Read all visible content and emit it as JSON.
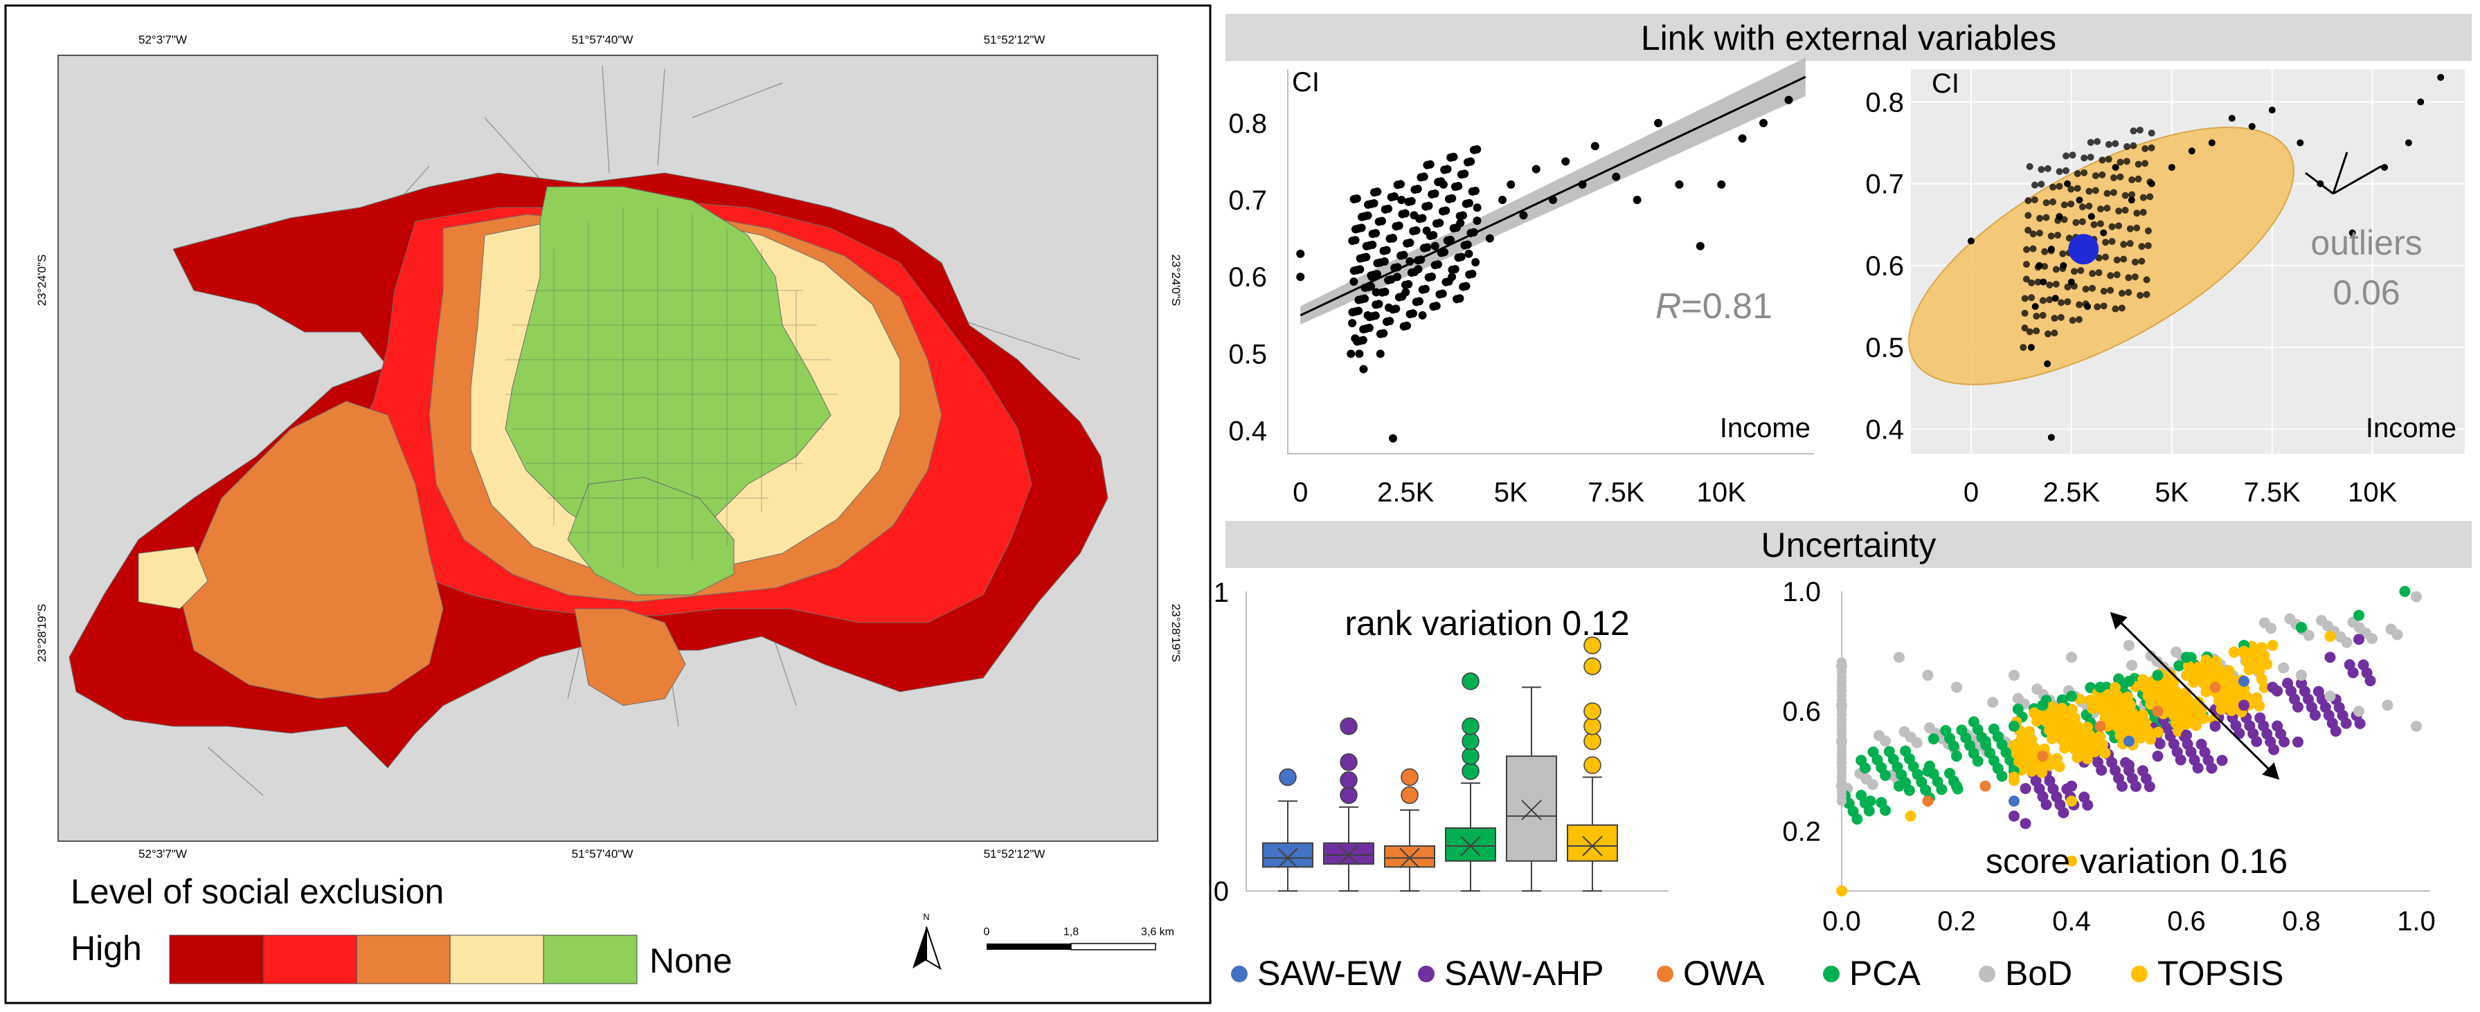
{
  "map": {
    "coords": {
      "top": [
        "52°3'7\"W",
        "51°57'40\"W",
        "51°52'12\"W"
      ],
      "bottom": [
        "52°3'7\"W",
        "51°57'40\"W",
        "51°52'12\"W"
      ],
      "left": [
        "23°24'0\"S",
        "23°28'19\"S"
      ],
      "right": [
        "23°24'0\"S",
        "23°28'19\"S"
      ]
    },
    "legend": {
      "title": "Level of social exclusion",
      "high_label": "High",
      "none_label": "None",
      "colors": [
        "#c00000",
        "#ff1c1c",
        "#e8803a",
        "#fde5a4",
        "#8fcf5a"
      ]
    },
    "north_label": "N",
    "scale": {
      "ticks": [
        "0",
        "1,8",
        "3,6 km"
      ]
    }
  },
  "panels": {
    "external_title": "Link with external variables",
    "uncertainty_title": "Uncertainty"
  },
  "colors": {
    "saw_ew": "#4472c4",
    "saw_ahp": "#7030a0",
    "owa": "#ed7d31",
    "pca": "#00b050",
    "bod": "#bfbfbf",
    "topsis": "#ffc000",
    "ellipse": "#f6c266",
    "centroid": "#1f2bd6",
    "annotation": "#8c8c8c"
  },
  "chart_data": [
    {
      "id": "income-ci-scatter",
      "type": "scatter",
      "ylabel": "CI",
      "xlabel": "Income",
      "xticks": [
        "0",
        "2.5K",
        "5K",
        "7.5K",
        "10K"
      ],
      "yticks": [
        "0.4",
        "0.5",
        "0.6",
        "0.7",
        "0.8"
      ],
      "xlim": [
        -300,
        12200
      ],
      "ylim": [
        0.37,
        0.87
      ],
      "annotation": {
        "prefix": "R",
        "value": "=0.81"
      },
      "trend": {
        "x0": 0,
        "y0": 0.55,
        "x1": 12000,
        "y1": 0.86
      },
      "points": [
        [
          0,
          0.63
        ],
        [
          0,
          0.6
        ],
        [
          1300,
          0.52
        ],
        [
          1400,
          0.5
        ],
        [
          1500,
          0.48
        ],
        [
          1600,
          0.55
        ],
        [
          1700,
          0.6
        ],
        [
          1800,
          0.58
        ],
        [
          1900,
          0.5
        ],
        [
          2000,
          0.62
        ],
        [
          2100,
          0.56
        ],
        [
          2200,
          0.65
        ],
        [
          2300,
          0.6
        ],
        [
          2400,
          0.7
        ],
        [
          2500,
          0.58
        ],
        [
          2600,
          0.62
        ],
        [
          2700,
          0.68
        ],
        [
          2800,
          0.61
        ],
        [
          2900,
          0.55
        ],
        [
          3000,
          0.66
        ],
        [
          3200,
          0.64
        ],
        [
          3400,
          0.72
        ],
        [
          3600,
          0.6
        ],
        [
          3800,
          0.67
        ],
        [
          4000,
          0.63
        ],
        [
          4200,
          0.69
        ],
        [
          4500,
          0.65
        ],
        [
          4800,
          0.7
        ],
        [
          5000,
          0.72
        ],
        [
          5300,
          0.68
        ],
        [
          5600,
          0.74
        ],
        [
          6000,
          0.7
        ],
        [
          6300,
          0.75
        ],
        [
          6700,
          0.72
        ],
        [
          7000,
          0.77
        ],
        [
          7500,
          0.73
        ],
        [
          8000,
          0.7
        ],
        [
          8500,
          0.8
        ],
        [
          9000,
          0.72
        ],
        [
          9500,
          0.64
        ],
        [
          10000,
          0.72
        ],
        [
          10500,
          0.78
        ],
        [
          11000,
          0.8
        ],
        [
          11600,
          0.83
        ],
        [
          2200,
          0.39
        ]
      ]
    },
    {
      "id": "income-ci-outliers",
      "type": "scatter",
      "ylabel": "CI",
      "xlabel": "Income",
      "xticks": [
        "0",
        "2.5K",
        "5K",
        "7.5K",
        "10K"
      ],
      "yticks": [
        "0.4",
        "0.5",
        "0.6",
        "0.7",
        "0.8"
      ],
      "xlim": [
        -1500,
        12300
      ],
      "ylim": [
        0.37,
        0.84
      ],
      "annotation": {
        "label": "outliers",
        "value": "0.06"
      },
      "centroid": [
        2800,
        0.62
      ],
      "points": [
        [
          1500,
          0.5
        ],
        [
          1600,
          0.55
        ],
        [
          1700,
          0.6
        ],
        [
          1800,
          0.58
        ],
        [
          1900,
          0.48
        ],
        [
          2000,
          0.62
        ],
        [
          2100,
          0.56
        ],
        [
          2200,
          0.66
        ],
        [
          2300,
          0.6
        ],
        [
          2400,
          0.7
        ],
        [
          2500,
          0.58
        ],
        [
          2700,
          0.68
        ],
        [
          2900,
          0.55
        ],
        [
          3000,
          0.66
        ],
        [
          3300,
          0.64
        ],
        [
          3600,
          0.72
        ],
        [
          4000,
          0.68
        ],
        [
          4500,
          0.7
        ],
        [
          5000,
          0.72
        ],
        [
          5500,
          0.74
        ],
        [
          6000,
          0.75
        ],
        [
          6500,
          0.78
        ],
        [
          7000,
          0.77
        ],
        [
          7500,
          0.79
        ],
        [
          8200,
          0.75
        ],
        [
          8700,
          0.7
        ],
        [
          9500,
          0.64
        ],
        [
          10300,
          0.72
        ],
        [
          10900,
          0.75
        ],
        [
          11200,
          0.8
        ],
        [
          11700,
          0.83
        ],
        [
          0,
          0.63
        ],
        [
          2000,
          0.39
        ]
      ]
    },
    {
      "id": "rank-variation-boxplot",
      "type": "box",
      "ylim": [
        0,
        1
      ],
      "yticks": [
        "0",
        "1"
      ],
      "annotation": "rank variation 0.12",
      "series": [
        {
          "name": "SAW-EW",
          "min": 0.0,
          "q1": 0.08,
          "median": 0.11,
          "q3": 0.16,
          "max": 0.3,
          "mean": 0.11,
          "outliers": [
            0.38
          ]
        },
        {
          "name": "SAW-AHP",
          "min": 0.0,
          "q1": 0.09,
          "median": 0.12,
          "q3": 0.16,
          "max": 0.28,
          "mean": 0.12,
          "outliers": [
            0.32,
            0.37,
            0.43,
            0.55
          ]
        },
        {
          "name": "OWA",
          "min": 0.0,
          "q1": 0.08,
          "median": 0.11,
          "q3": 0.15,
          "max": 0.27,
          "mean": 0.11,
          "outliers": [
            0.32,
            0.38
          ]
        },
        {
          "name": "PCA",
          "min": 0.0,
          "q1": 0.1,
          "median": 0.15,
          "q3": 0.21,
          "max": 0.36,
          "mean": 0.15,
          "outliers": [
            0.4,
            0.45,
            0.5,
            0.55,
            0.7
          ]
        },
        {
          "name": "BoD",
          "min": 0.0,
          "q1": 0.1,
          "median": 0.25,
          "q3": 0.45,
          "max": 0.68,
          "mean": 0.27,
          "outliers": []
        },
        {
          "name": "TOPSIS",
          "min": 0.0,
          "q1": 0.1,
          "median": 0.15,
          "q3": 0.22,
          "max": 0.38,
          "mean": 0.15,
          "outliers": [
            0.42,
            0.5,
            0.55,
            0.6,
            0.75,
            0.82
          ]
        }
      ]
    },
    {
      "id": "score-variation-scatter",
      "type": "scatter",
      "xticks": [
        "0.0",
        "0.2",
        "0.4",
        "0.6",
        "0.8",
        "1.0"
      ],
      "yticks": [
        "0.2",
        "0.6",
        "1.0"
      ],
      "xlim": [
        0,
        1
      ],
      "ylim": [
        0,
        1
      ],
      "annotation": "score variation 0.16",
      "series": [
        {
          "name": "PCA",
          "points": [
            [
              0.05,
              0.3
            ],
            [
              0.1,
              0.35
            ],
            [
              0.15,
              0.4
            ],
            [
              0.2,
              0.45
            ],
            [
              0.25,
              0.5
            ],
            [
              0.3,
              0.55
            ],
            [
              0.35,
              0.62
            ],
            [
              0.4,
              0.65
            ],
            [
              0.45,
              0.68
            ],
            [
              0.3,
              0.4
            ],
            [
              0.2,
              0.35
            ],
            [
              0.5,
              0.7
            ],
            [
              0.55,
              0.72
            ],
            [
              0.6,
              0.78
            ],
            [
              0.7,
              0.82
            ],
            [
              0.8,
              0.88
            ],
            [
              0.9,
              0.92
            ],
            [
              0.98,
              1.0
            ]
          ]
        },
        {
          "name": "SAW-AHP",
          "points": [
            [
              0.3,
              0.25
            ],
            [
              0.4,
              0.35
            ],
            [
              0.5,
              0.42
            ],
            [
              0.55,
              0.45
            ],
            [
              0.6,
              0.52
            ],
            [
              0.65,
              0.55
            ],
            [
              0.7,
              0.62
            ],
            [
              0.75,
              0.68
            ],
            [
              0.8,
              0.72
            ],
            [
              0.85,
              0.78
            ],
            [
              0.9,
              0.84
            ]
          ]
        },
        {
          "name": "BoD",
          "points": [
            [
              0.0,
              0.35
            ],
            [
              0.0,
              0.5
            ],
            [
              0.0,
              0.62
            ],
            [
              0.0,
              0.75
            ],
            [
              0.1,
              0.78
            ],
            [
              0.15,
              0.72
            ],
            [
              0.2,
              0.68
            ],
            [
              0.3,
              0.72
            ],
            [
              0.4,
              0.78
            ],
            [
              0.5,
              0.82
            ],
            [
              0.8,
              0.72
            ],
            [
              0.85,
              0.65
            ],
            [
              0.9,
              0.6
            ],
            [
              0.95,
              0.62
            ],
            [
              1.0,
              0.55
            ]
          ]
        },
        {
          "name": "TOPSIS",
          "points": [
            [
              0.3,
              0.38
            ],
            [
              0.35,
              0.42
            ],
            [
              0.4,
              0.5
            ],
            [
              0.45,
              0.55
            ],
            [
              0.5,
              0.6
            ],
            [
              0.55,
              0.68
            ],
            [
              0.6,
              0.72
            ],
            [
              0.65,
              0.75
            ],
            [
              0.7,
              0.8
            ],
            [
              0.75,
              0.82
            ],
            [
              0.85,
              0.85
            ],
            [
              0.4,
              0.3
            ],
            [
              0.0,
              0.0
            ],
            [
              0.12,
              0.25
            ],
            [
              0.4,
              0.1
            ]
          ]
        },
        {
          "name": "SAW-EW",
          "points": [
            [
              0.3,
              0.3
            ],
            [
              0.5,
              0.5
            ],
            [
              0.7,
              0.7
            ]
          ]
        },
        {
          "name": "OWA",
          "points": [
            [
              0.15,
              0.3
            ],
            [
              0.25,
              0.35
            ],
            [
              0.35,
              0.45
            ],
            [
              0.45,
              0.55
            ],
            [
              0.55,
              0.6
            ],
            [
              0.65,
              0.68
            ]
          ]
        }
      ]
    }
  ],
  "legend": [
    "SAW-EW",
    "SAW-AHP",
    "OWA",
    "PCA",
    "BoD",
    "TOPSIS"
  ]
}
